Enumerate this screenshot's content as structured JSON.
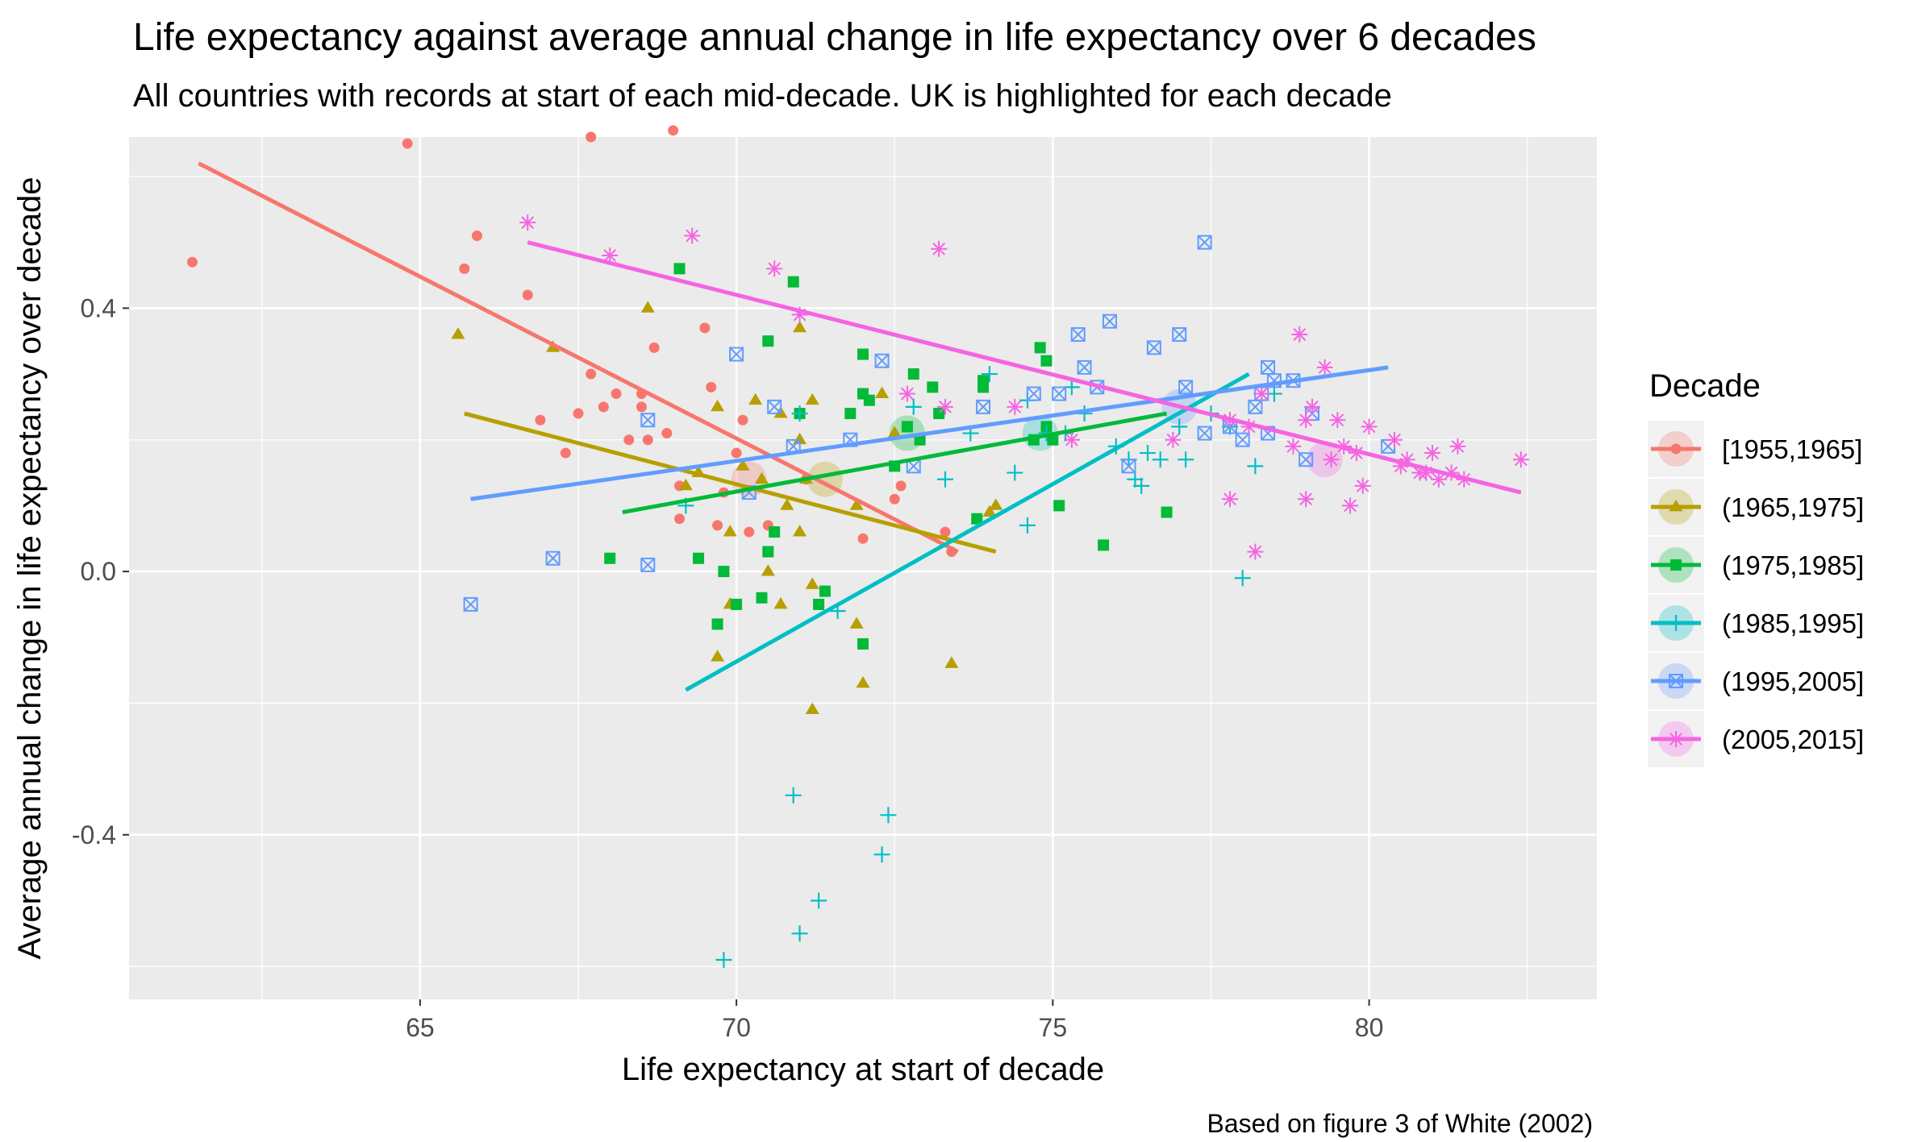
{
  "chart_data": {
    "type": "scatter",
    "title": "Life expectancy against average annual change in life expectancy over 6 decades",
    "subtitle": "All countries with records at start of each mid-decade. UK is highlighted for each decade",
    "xlabel": "Life expectancy at start of decade",
    "ylabel": "Average annual change in life expectancy over decade",
    "caption": "Based on figure 3 of White (2002)",
    "xlim": [
      60.4,
      83.6
    ],
    "ylim": [
      -0.65,
      0.66
    ],
    "x_ticks": [
      65,
      70,
      75,
      80
    ],
    "x_tick_labels": [
      "65",
      "70",
      "75",
      "80"
    ],
    "y_ticks": [
      -0.4,
      0.0,
      0.4
    ],
    "y_tick_labels": [
      "-0.4",
      "0.0",
      "0.4"
    ],
    "grid": true,
    "legend": {
      "title": "Decade",
      "position": "right"
    },
    "series": [
      {
        "name": "[1955,1965]",
        "color": "#F8766D",
        "marker": "circle",
        "uk": {
          "x": 70.2,
          "y": 0.14
        },
        "trend": {
          "x": [
            61.5,
            73.5
          ],
          "y": [
            0.62,
            0.03
          ]
        },
        "points": [
          {
            "x": 61.4,
            "y": 0.47
          },
          {
            "x": 64.8,
            "y": 0.65
          },
          {
            "x": 65.7,
            "y": 0.46
          },
          {
            "x": 65.9,
            "y": 0.51
          },
          {
            "x": 66.7,
            "y": 0.42
          },
          {
            "x": 66.9,
            "y": 0.23
          },
          {
            "x": 67.3,
            "y": 0.18
          },
          {
            "x": 67.5,
            "y": 0.24
          },
          {
            "x": 67.7,
            "y": 0.3
          },
          {
            "x": 67.7,
            "y": 0.66
          },
          {
            "x": 67.9,
            "y": 0.25
          },
          {
            "x": 68.1,
            "y": 0.27
          },
          {
            "x": 68.3,
            "y": 0.2
          },
          {
            "x": 68.5,
            "y": 0.27
          },
          {
            "x": 68.5,
            "y": 0.25
          },
          {
            "x": 68.6,
            "y": 0.2
          },
          {
            "x": 68.7,
            "y": 0.34
          },
          {
            "x": 68.9,
            "y": 0.21
          },
          {
            "x": 69.0,
            "y": 0.67
          },
          {
            "x": 69.1,
            "y": 0.08
          },
          {
            "x": 69.1,
            "y": 0.13
          },
          {
            "x": 69.5,
            "y": 0.37
          },
          {
            "x": 69.6,
            "y": 0.28
          },
          {
            "x": 69.7,
            "y": 0.07
          },
          {
            "x": 69.8,
            "y": 0.12
          },
          {
            "x": 70.0,
            "y": 0.18
          },
          {
            "x": 70.1,
            "y": 0.23
          },
          {
            "x": 70.2,
            "y": 0.06
          },
          {
            "x": 70.5,
            "y": 0.07
          },
          {
            "x": 71.1,
            "y": 0.14
          },
          {
            "x": 72.0,
            "y": 0.05
          },
          {
            "x": 72.6,
            "y": 0.13
          },
          {
            "x": 72.5,
            "y": 0.11
          },
          {
            "x": 73.3,
            "y": 0.06
          },
          {
            "x": 73.4,
            "y": 0.03
          }
        ]
      },
      {
        "name": "(1965,1975]",
        "color": "#B79F00",
        "marker": "triangle",
        "uk": {
          "x": 71.4,
          "y": 0.14
        },
        "trend": {
          "x": [
            65.7,
            74.1
          ],
          "y": [
            0.24,
            0.03
          ]
        },
        "points": [
          {
            "x": 65.6,
            "y": 0.36
          },
          {
            "x": 67.1,
            "y": 0.34
          },
          {
            "x": 68.6,
            "y": 0.4
          },
          {
            "x": 69.2,
            "y": 0.13
          },
          {
            "x": 69.4,
            "y": 0.15
          },
          {
            "x": 69.7,
            "y": 0.25
          },
          {
            "x": 69.7,
            "y": -0.13
          },
          {
            "x": 69.9,
            "y": -0.05
          },
          {
            "x": 69.9,
            "y": 0.06
          },
          {
            "x": 70.1,
            "y": 0.16
          },
          {
            "x": 70.3,
            "y": 0.26
          },
          {
            "x": 70.4,
            "y": 0.14
          },
          {
            "x": 70.5,
            "y": 0.0
          },
          {
            "x": 70.7,
            "y": 0.24
          },
          {
            "x": 70.7,
            "y": -0.05
          },
          {
            "x": 70.8,
            "y": 0.1
          },
          {
            "x": 71.0,
            "y": 0.37
          },
          {
            "x": 71.0,
            "y": 0.06
          },
          {
            "x": 71.0,
            "y": 0.2
          },
          {
            "x": 71.1,
            "y": 0.14
          },
          {
            "x": 71.2,
            "y": 0.26
          },
          {
            "x": 71.2,
            "y": -0.02
          },
          {
            "x": 71.2,
            "y": -0.21
          },
          {
            "x": 71.9,
            "y": -0.08
          },
          {
            "x": 71.9,
            "y": 0.1
          },
          {
            "x": 72.0,
            "y": -0.17
          },
          {
            "x": 72.5,
            "y": 0.21
          },
          {
            "x": 72.3,
            "y": 0.27
          },
          {
            "x": 73.4,
            "y": -0.14
          },
          {
            "x": 74.1,
            "y": 0.1
          },
          {
            "x": 74.0,
            "y": 0.09
          }
        ]
      },
      {
        "name": "(1975,1985]",
        "color": "#00BA38",
        "marker": "square",
        "uk": {
          "x": 72.7,
          "y": 0.21
        },
        "trend": {
          "x": [
            68.2,
            76.8
          ],
          "y": [
            0.09,
            0.24
          ]
        },
        "points": [
          {
            "x": 68.0,
            "y": 0.02
          },
          {
            "x": 69.1,
            "y": 0.46
          },
          {
            "x": 69.4,
            "y": 0.02
          },
          {
            "x": 69.7,
            "y": -0.08
          },
          {
            "x": 69.8,
            "y": 0.0
          },
          {
            "x": 70.0,
            "y": -0.05
          },
          {
            "x": 70.4,
            "y": -0.04
          },
          {
            "x": 70.5,
            "y": 0.03
          },
          {
            "x": 70.5,
            "y": 0.35
          },
          {
            "x": 70.6,
            "y": 0.06
          },
          {
            "x": 70.9,
            "y": 0.44
          },
          {
            "x": 71.0,
            "y": 0.24
          },
          {
            "x": 71.3,
            "y": -0.05
          },
          {
            "x": 71.4,
            "y": -0.03
          },
          {
            "x": 71.8,
            "y": 0.24
          },
          {
            "x": 72.0,
            "y": 0.27
          },
          {
            "x": 72.0,
            "y": 0.33
          },
          {
            "x": 72.1,
            "y": 0.26
          },
          {
            "x": 72.0,
            "y": -0.11
          },
          {
            "x": 72.5,
            "y": 0.16
          },
          {
            "x": 72.7,
            "y": 0.22
          },
          {
            "x": 72.8,
            "y": 0.3
          },
          {
            "x": 72.9,
            "y": 0.2
          },
          {
            "x": 73.1,
            "y": 0.28
          },
          {
            "x": 73.2,
            "y": 0.24
          },
          {
            "x": 73.8,
            "y": 0.08
          },
          {
            "x": 73.9,
            "y": 0.29
          },
          {
            "x": 73.9,
            "y": 0.28
          },
          {
            "x": 74.7,
            "y": 0.2
          },
          {
            "x": 74.8,
            "y": 0.34
          },
          {
            "x": 74.9,
            "y": 0.32
          },
          {
            "x": 74.9,
            "y": 0.22
          },
          {
            "x": 75.0,
            "y": 0.2
          },
          {
            "x": 75.1,
            "y": 0.1
          },
          {
            "x": 75.8,
            "y": 0.04
          },
          {
            "x": 76.8,
            "y": 0.09
          }
        ]
      },
      {
        "name": "(1985,1995]",
        "color": "#00BFC4",
        "marker": "plus",
        "uk": {
          "x": 74.8,
          "y": 0.21
        },
        "trend": {
          "x": [
            69.2,
            78.1
          ],
          "y": [
            -0.18,
            0.3
          ]
        },
        "points": [
          {
            "x": 69.2,
            "y": 0.1
          },
          {
            "x": 69.8,
            "y": -0.59
          },
          {
            "x": 70.9,
            "y": -0.34
          },
          {
            "x": 71.0,
            "y": -0.55
          },
          {
            "x": 71.0,
            "y": 0.24
          },
          {
            "x": 71.3,
            "y": -0.5
          },
          {
            "x": 71.6,
            "y": -0.06
          },
          {
            "x": 72.3,
            "y": -0.43
          },
          {
            "x": 72.4,
            "y": -0.37
          },
          {
            "x": 72.8,
            "y": 0.25
          },
          {
            "x": 73.3,
            "y": 0.14
          },
          {
            "x": 73.7,
            "y": 0.21
          },
          {
            "x": 74.0,
            "y": 0.3
          },
          {
            "x": 74.4,
            "y": 0.15
          },
          {
            "x": 74.6,
            "y": 0.07
          },
          {
            "x": 74.6,
            "y": 0.26
          },
          {
            "x": 74.9,
            "y": 0.21
          },
          {
            "x": 75.2,
            "y": 0.21
          },
          {
            "x": 75.3,
            "y": 0.28
          },
          {
            "x": 75.5,
            "y": 0.24
          },
          {
            "x": 76.0,
            "y": 0.19
          },
          {
            "x": 76.2,
            "y": 0.17
          },
          {
            "x": 76.3,
            "y": 0.14
          },
          {
            "x": 76.4,
            "y": 0.13
          },
          {
            "x": 76.5,
            "y": 0.18
          },
          {
            "x": 76.7,
            "y": 0.17
          },
          {
            "x": 77.0,
            "y": 0.22
          },
          {
            "x": 77.1,
            "y": 0.17
          },
          {
            "x": 77.5,
            "y": 0.24
          },
          {
            "x": 77.8,
            "y": 0.22
          },
          {
            "x": 78.0,
            "y": -0.01
          },
          {
            "x": 78.2,
            "y": 0.16
          },
          {
            "x": 78.5,
            "y": 0.27
          }
        ]
      },
      {
        "name": "(1995,2005]",
        "color": "#619CFF",
        "marker": "square-x",
        "uk": {
          "x": 77.0,
          "y": 0.25
        },
        "trend": {
          "x": [
            65.8,
            80.3
          ],
          "y": [
            0.11,
            0.31
          ]
        },
        "points": [
          {
            "x": 65.8,
            "y": -0.05
          },
          {
            "x": 67.1,
            "y": 0.02
          },
          {
            "x": 68.6,
            "y": 0.01
          },
          {
            "x": 68.6,
            "y": 0.23
          },
          {
            "x": 70.0,
            "y": 0.33
          },
          {
            "x": 70.2,
            "y": 0.12
          },
          {
            "x": 70.6,
            "y": 0.25
          },
          {
            "x": 70.9,
            "y": 0.19
          },
          {
            "x": 71.8,
            "y": 0.2
          },
          {
            "x": 72.3,
            "y": 0.32
          },
          {
            "x": 72.8,
            "y": 0.16
          },
          {
            "x": 73.9,
            "y": 0.25
          },
          {
            "x": 74.7,
            "y": 0.27
          },
          {
            "x": 75.1,
            "y": 0.27
          },
          {
            "x": 75.4,
            "y": 0.36
          },
          {
            "x": 75.5,
            "y": 0.31
          },
          {
            "x": 75.7,
            "y": 0.28
          },
          {
            "x": 75.9,
            "y": 0.38
          },
          {
            "x": 76.2,
            "y": 0.16
          },
          {
            "x": 76.6,
            "y": 0.34
          },
          {
            "x": 77.0,
            "y": 0.36
          },
          {
            "x": 77.1,
            "y": 0.28
          },
          {
            "x": 77.4,
            "y": 0.21
          },
          {
            "x": 77.4,
            "y": 0.5
          },
          {
            "x": 77.8,
            "y": 0.22
          },
          {
            "x": 78.0,
            "y": 0.2
          },
          {
            "x": 78.2,
            "y": 0.25
          },
          {
            "x": 78.3,
            "y": 0.27
          },
          {
            "x": 78.4,
            "y": 0.21
          },
          {
            "x": 78.4,
            "y": 0.31
          },
          {
            "x": 78.5,
            "y": 0.29
          },
          {
            "x": 78.8,
            "y": 0.29
          },
          {
            "x": 79.0,
            "y": 0.17
          },
          {
            "x": 79.1,
            "y": 0.24
          },
          {
            "x": 80.3,
            "y": 0.19
          }
        ]
      },
      {
        "name": "(2005,2015]",
        "color": "#F564E3",
        "marker": "asterisk",
        "uk": {
          "x": 79.3,
          "y": 0.17
        },
        "trend": {
          "x": [
            66.7,
            82.4
          ],
          "y": [
            0.5,
            0.12
          ]
        },
        "points": [
          {
            "x": 66.7,
            "y": 0.53
          },
          {
            "x": 68.0,
            "y": 0.48
          },
          {
            "x": 69.3,
            "y": 0.51
          },
          {
            "x": 70.6,
            "y": 0.46
          },
          {
            "x": 71.0,
            "y": 0.39
          },
          {
            "x": 72.7,
            "y": 0.27
          },
          {
            "x": 73.2,
            "y": 0.49
          },
          {
            "x": 73.3,
            "y": 0.25
          },
          {
            "x": 74.4,
            "y": 0.25
          },
          {
            "x": 75.3,
            "y": 0.2
          },
          {
            "x": 76.9,
            "y": 0.2
          },
          {
            "x": 77.8,
            "y": 0.23
          },
          {
            "x": 77.8,
            "y": 0.11
          },
          {
            "x": 78.1,
            "y": 0.22
          },
          {
            "x": 78.2,
            "y": 0.03
          },
          {
            "x": 78.3,
            "y": 0.27
          },
          {
            "x": 78.8,
            "y": 0.19
          },
          {
            "x": 78.9,
            "y": 0.36
          },
          {
            "x": 79.0,
            "y": 0.11
          },
          {
            "x": 79.0,
            "y": 0.23
          },
          {
            "x": 79.1,
            "y": 0.25
          },
          {
            "x": 79.3,
            "y": 0.31
          },
          {
            "x": 79.4,
            "y": 0.17
          },
          {
            "x": 79.5,
            "y": 0.23
          },
          {
            "x": 79.6,
            "y": 0.19
          },
          {
            "x": 79.7,
            "y": 0.1
          },
          {
            "x": 79.8,
            "y": 0.18
          },
          {
            "x": 79.9,
            "y": 0.13
          },
          {
            "x": 80.0,
            "y": 0.22
          },
          {
            "x": 80.4,
            "y": 0.2
          },
          {
            "x": 80.5,
            "y": 0.16
          },
          {
            "x": 80.6,
            "y": 0.17
          },
          {
            "x": 80.8,
            "y": 0.15
          },
          {
            "x": 80.9,
            "y": 0.15
          },
          {
            "x": 81.0,
            "y": 0.18
          },
          {
            "x": 81.1,
            "y": 0.14
          },
          {
            "x": 81.3,
            "y": 0.15
          },
          {
            "x": 81.4,
            "y": 0.19
          },
          {
            "x": 81.5,
            "y": 0.14
          },
          {
            "x": 82.4,
            "y": 0.17
          }
        ]
      }
    ]
  }
}
